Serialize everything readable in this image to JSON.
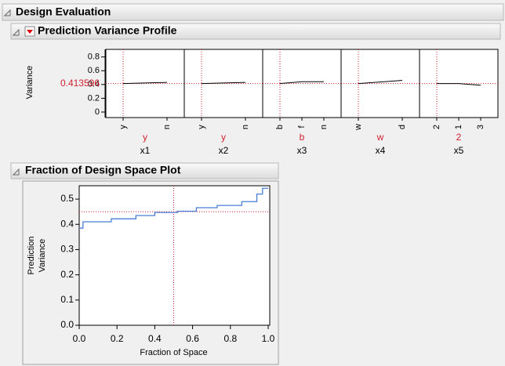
{
  "outline": {
    "title": "Design Evaluation"
  },
  "profile_outline": {
    "title": "Prediction Variance Profile"
  },
  "fds_outline": {
    "title": "Fraction of Design Space Plot"
  },
  "chart_data": [
    {
      "type": "profiler",
      "ylabel": "Variance",
      "current_value": 0.413596,
      "ylim": [
        -0.08,
        0.91
      ],
      "yticks": [
        0,
        0.2,
        0.4,
        0.6,
        0.8
      ],
      "line_color": "#000000",
      "ref_color": "#d02030",
      "panels": [
        {
          "factor": "x1",
          "setting": "y",
          "categories": [
            "y",
            "n"
          ],
          "values": [
            0.413596,
            0.43
          ]
        },
        {
          "factor": "x2",
          "setting": "y",
          "categories": [
            "y",
            "n"
          ],
          "values": [
            0.413596,
            0.43
          ]
        },
        {
          "factor": "x3",
          "setting": "b",
          "categories": [
            "b",
            "f",
            "n"
          ],
          "values": [
            0.413596,
            0.44,
            0.44
          ]
        },
        {
          "factor": "x4",
          "setting": "w",
          "categories": [
            "w",
            "d"
          ],
          "values": [
            0.413596,
            0.46
          ]
        },
        {
          "factor": "x5",
          "setting": "2",
          "categories": [
            "2",
            "1",
            "3"
          ],
          "values": [
            0.413596,
            0.413,
            0.39
          ]
        }
      ]
    },
    {
      "type": "line",
      "xlabel": "Fraction of Space",
      "ylabel": [
        "Prediction",
        "Variance"
      ],
      "color": "#4a7fd8",
      "ref_color": "#d02030",
      "ref_x": 0.5,
      "ref_y": 0.45,
      "xlim": [
        0,
        1
      ],
      "ylim": [
        0,
        0.553
      ],
      "xticks": [
        {
          "value": 0,
          "label": "0.0"
        },
        0.2,
        0.4,
        0.6,
        0.8,
        {
          "value": 1,
          "label": "1.0"
        }
      ],
      "yticks": [
        {
          "value": 0,
          "label": "0.0"
        },
        0.1,
        0.2,
        0.3,
        0.4,
        0.5
      ],
      "x": [
        0,
        0.02,
        0.02,
        0.17,
        0.17,
        0.3,
        0.3,
        0.4,
        0.4,
        0.52,
        0.52,
        0.62,
        0.62,
        0.73,
        0.73,
        0.86,
        0.86,
        0.94,
        0.94,
        0.97,
        0.97,
        1.0
      ],
      "values": [
        0.385,
        0.385,
        0.41,
        0.41,
        0.422,
        0.422,
        0.435,
        0.435,
        0.447,
        0.447,
        0.452,
        0.452,
        0.466,
        0.466,
        0.475,
        0.475,
        0.49,
        0.49,
        0.52,
        0.52,
        0.543,
        0.543
      ]
    }
  ]
}
